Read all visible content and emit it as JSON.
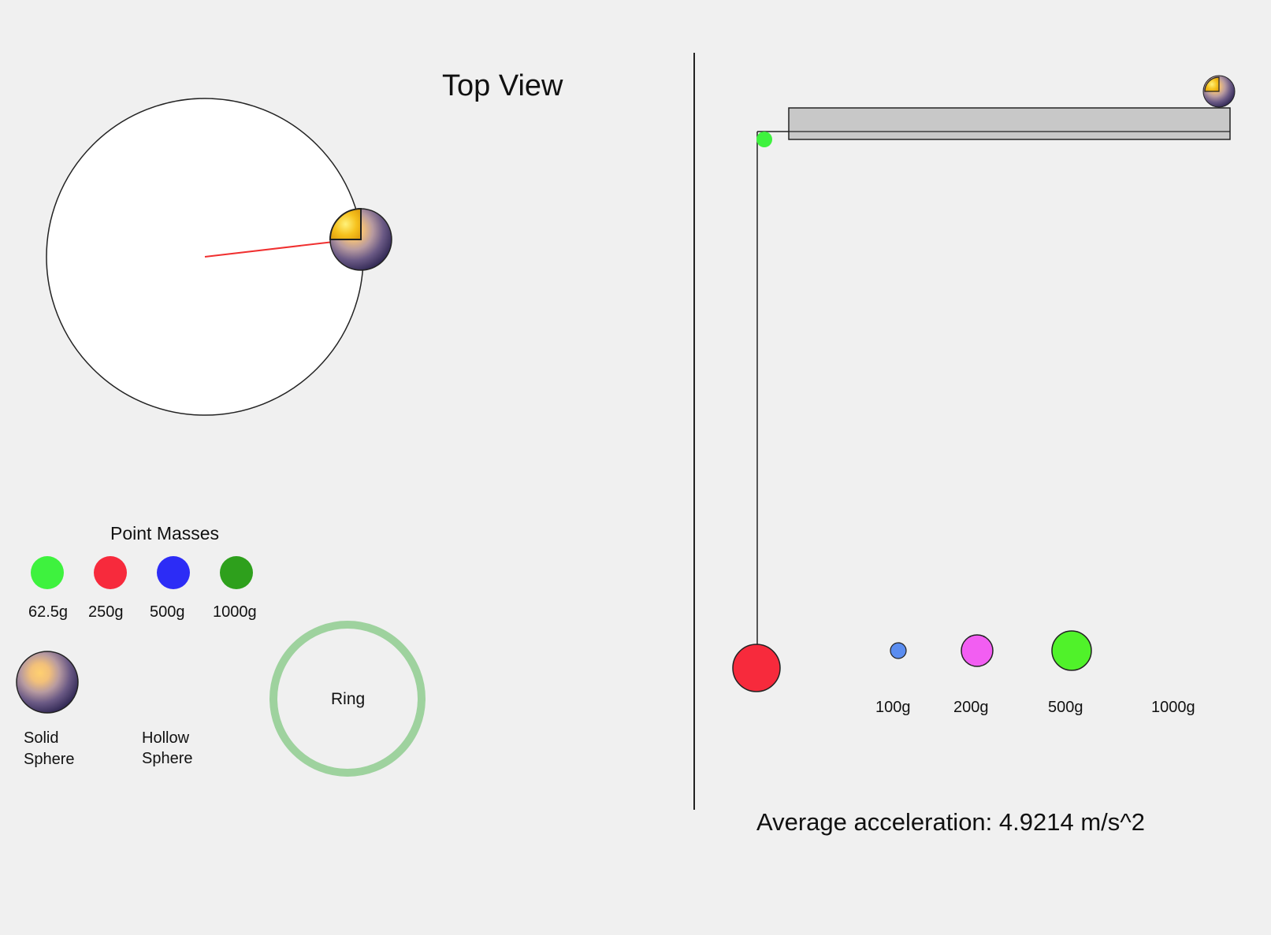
{
  "top_view": {
    "title": "Top View"
  },
  "point_masses": {
    "title": "Point Masses",
    "items": [
      {
        "label": "62.5g",
        "color": "#3ef23e"
      },
      {
        "label": "250g",
        "color": "#f72a3c"
      },
      {
        "label": "500g",
        "color": "#2c2cf6"
      },
      {
        "label": "1000g",
        "color": "#2ea01c"
      }
    ]
  },
  "objects": {
    "solid_sphere": {
      "line1": "Solid",
      "line2": "Sphere"
    },
    "hollow_sphere": {
      "line1": "Hollow",
      "line2": "Sphere"
    },
    "ring": {
      "label": "Ring",
      "color": "#9ed29e"
    }
  },
  "hanging_masses": {
    "items": [
      {
        "label": "100g",
        "color": "#5b8df0"
      },
      {
        "label": "200g",
        "color": "#f25ef2"
      },
      {
        "label": "500g",
        "color": "#50f22a"
      },
      {
        "label": "1000g",
        "color": ""
      }
    ],
    "attached_color": "#f72a3c"
  },
  "readout": {
    "text": "Average acceleration: 4.9214 m/s^2"
  }
}
